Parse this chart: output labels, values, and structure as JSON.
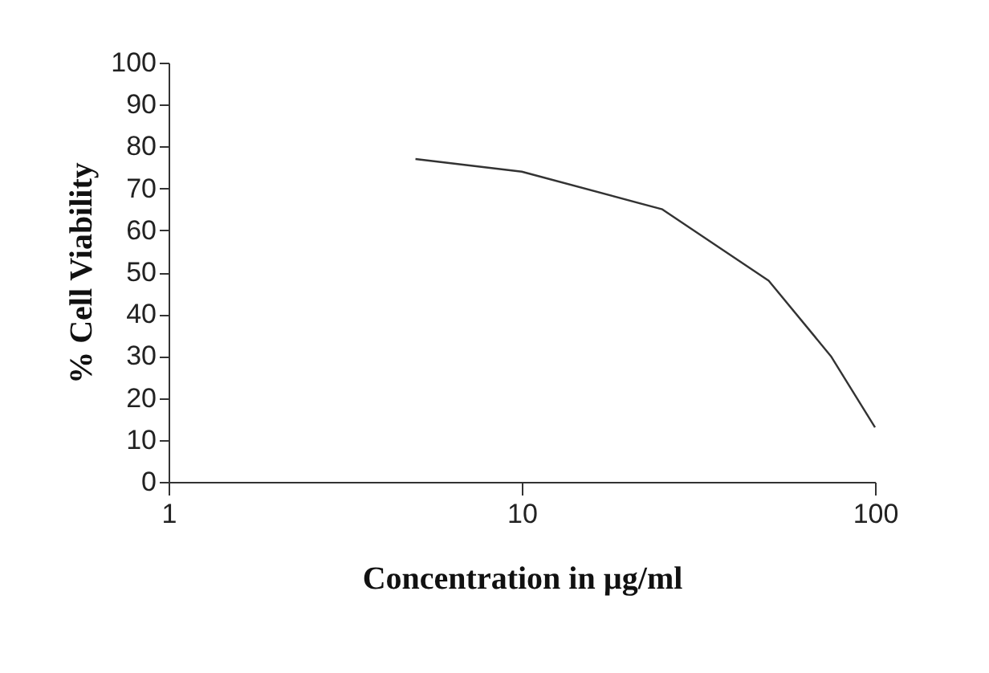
{
  "chart_data": {
    "type": "line",
    "xlabel": "Concentration in µg/ml",
    "ylabel": "% Cell Viability",
    "x": [
      5,
      10,
      25,
      50,
      75,
      100
    ],
    "series": [
      {
        "color": "#333333",
        "values": [
          77,
          74,
          65,
          48,
          30,
          13
        ]
      }
    ],
    "log": "x",
    "xlim": [
      1,
      100
    ],
    "xticks": [
      1,
      10,
      100
    ],
    "ylim": [
      0,
      100
    ],
    "yticks": [
      0,
      10,
      20,
      30,
      40,
      50,
      60,
      70,
      80,
      90,
      100
    ],
    "grid": false,
    "legend": false,
    "marker": "none",
    "line_style": "solid"
  }
}
